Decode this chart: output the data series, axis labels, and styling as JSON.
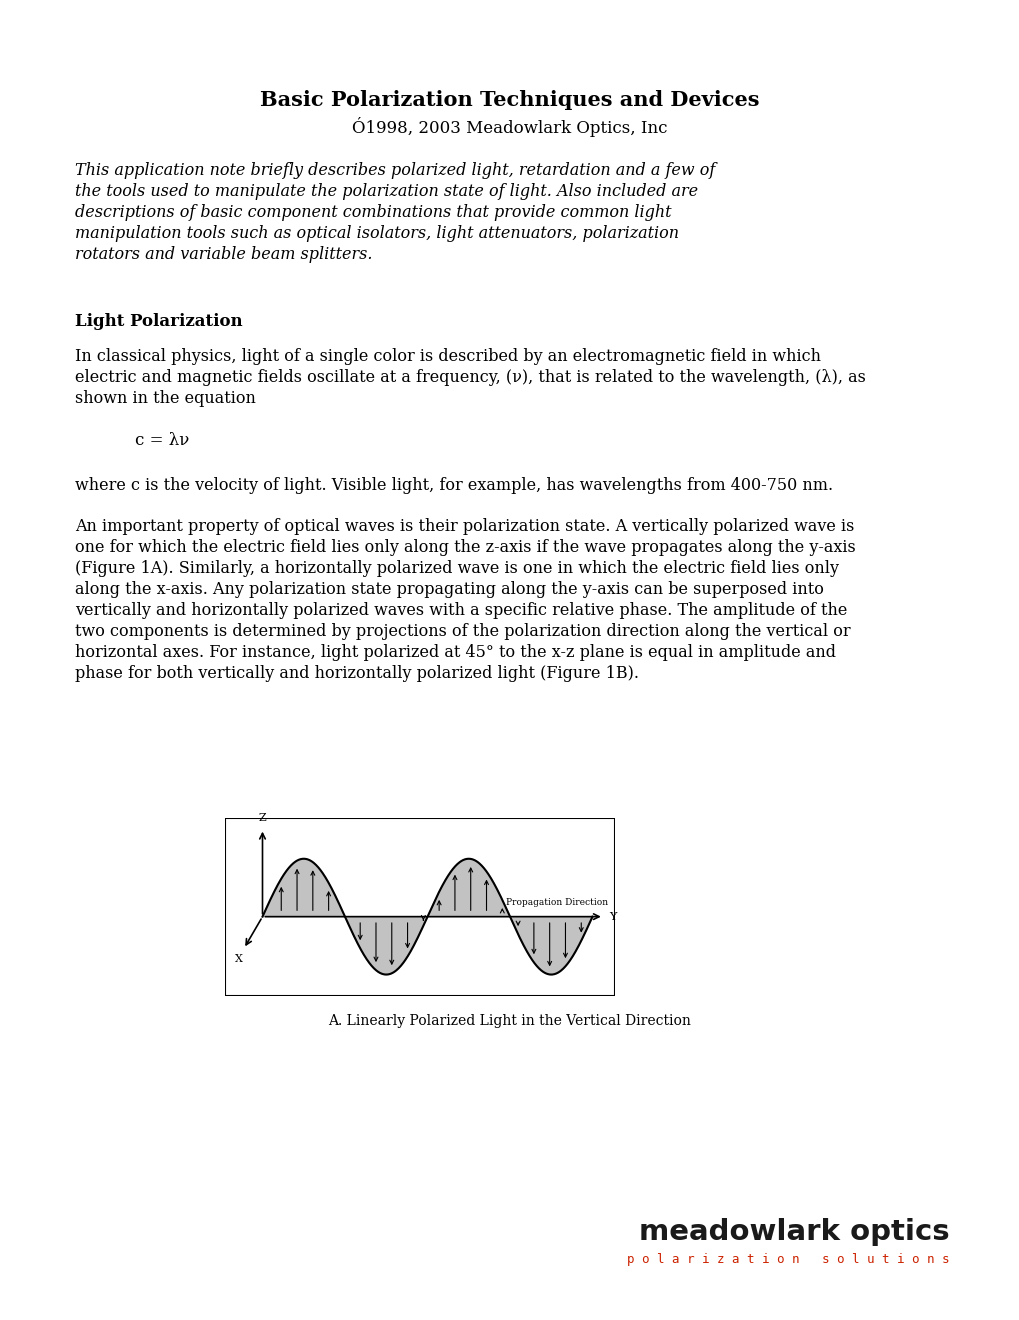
{
  "title": "Basic Polarization Techniques and Devices",
  "subtitle": "Ó1998, 2003 Meadowlark Optics, Inc",
  "bg_color": "#ffffff",
  "text_color": "#000000",
  "section_heading": "Light Polarization",
  "equation": "c = λν",
  "para2": "where c is the velocity of light. Visible light, for example, has wavelengths from 400-750 nm.",
  "fig_caption": "A. Linearly Polarized Light in the Vertical Direction",
  "logo_text_main": "meadowlark optics",
  "logo_text_sub": "p o l a r i z a t i o n   s o l u t i o n s",
  "logo_color_main": "#1a1a1a",
  "logo_color_sub": "#cc2200",
  "intro_lines": [
    "This application note briefly describes polarized light, retardation and a few of",
    "the tools used to manipulate the polarization state of light. Also included are",
    "descriptions of basic component combinations that provide common light",
    "manipulation tools such as optical isolators, light attenuators, polarization",
    "rotators and variable beam splitters."
  ],
  "p1_lines": [
    "In classical physics, light of a single color is described by an electromagnetic field in which",
    "electric and magnetic fields oscillate at a frequency, (ν), that is related to the wavelength, (λ), as",
    "shown in the equation"
  ],
  "p3_lines": [
    "An important property of optical waves is their polarization state. A vertically polarized wave is",
    "one for which the electric field lies only along the z-axis if the wave propagates along the y-axis",
    "(Figure 1A). Similarly, a horizontally polarized wave is one in which the electric field lies only",
    "along the x-axis. Any polarization state propagating along the y-axis can be superposed into",
    "vertically and horizontally polarized waves with a specific relative phase. The amplitude of the",
    "two components is determined by projections of the polarization direction along the vertical or",
    "horizontal axes. For instance, light polarized at 45° to the x-z plane is equal in amplitude and",
    "phase for both vertically and horizontally polarized light (Figure 1B)."
  ]
}
